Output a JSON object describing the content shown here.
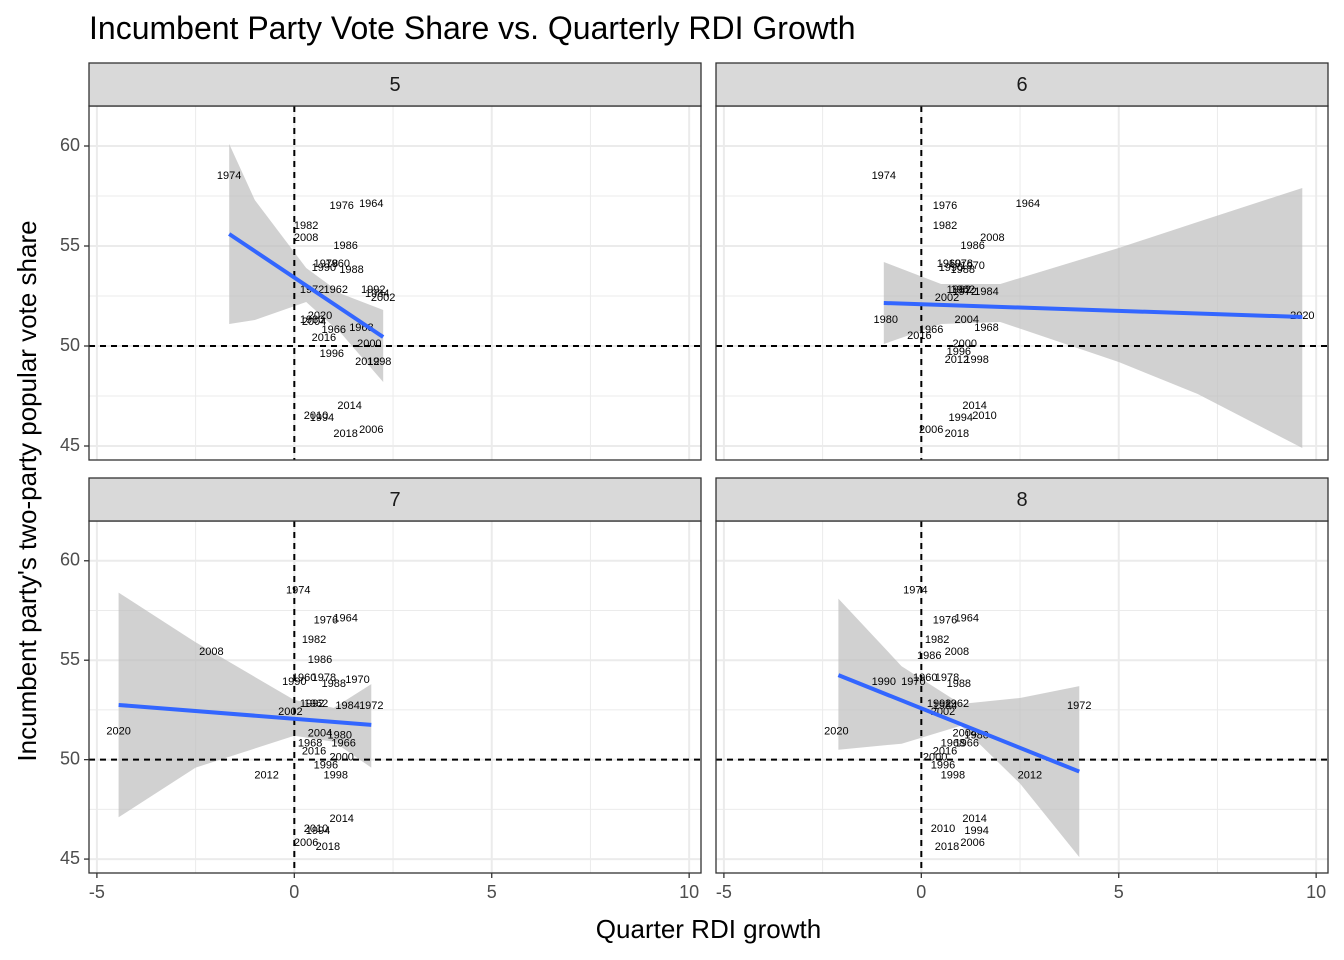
{
  "title": "Incumbent Party Vote Share vs. Quarterly RDI Growth",
  "colors": {
    "fit_line": "#3366FF",
    "ribbon": "#BEBEBE",
    "strip_fill": "#D9D9D9",
    "grid": "#EBEBEB",
    "panel_border": "#333333",
    "reference_line": "#000000"
  },
  "chart_data": {
    "type": "scatter",
    "facet_variable": "quarter",
    "xlabel": "Quarter RDI growth",
    "ylabel": "Incumbent party's two-party popular vote share",
    "xlim": [
      -5.2,
      10.3
    ],
    "ylim": [
      44.3,
      62.0
    ],
    "x_ticks": [
      -5,
      0,
      5,
      10
    ],
    "y_ticks": [
      45,
      50,
      55,
      60
    ],
    "reference_lines": {
      "x": 0,
      "y": 50
    },
    "grid": true,
    "smoother": "linear fit with confidence ribbon",
    "panels": [
      {
        "label": "5",
        "fit": {
          "x": [
            -1.65,
            2.25
          ],
          "y": [
            55.6,
            50.45
          ]
        },
        "ribbon": {
          "x": [
            -1.65,
            -1.0,
            0.3,
            1.2,
            2.25
          ],
          "upper": [
            60.1,
            57.3,
            53.9,
            52.6,
            51.8
          ],
          "lower": [
            51.1,
            51.3,
            52.2,
            50.6,
            48.2
          ]
        },
        "points": [
          {
            "label": "1974",
            "x": -1.65,
            "y": 58.5
          },
          {
            "label": "1976",
            "x": 1.2,
            "y": 57.0
          },
          {
            "label": "1964",
            "x": 1.95,
            "y": 57.1
          },
          {
            "label": "1982",
            "x": 0.3,
            "y": 56.0
          },
          {
            "label": "2008",
            "x": 0.3,
            "y": 55.4
          },
          {
            "label": "1986",
            "x": 1.3,
            "y": 55.0
          },
          {
            "label": "1978",
            "x": 0.8,
            "y": 54.1
          },
          {
            "label": "1960",
            "x": 1.1,
            "y": 54.1
          },
          {
            "label": "1990",
            "x": 0.75,
            "y": 53.9
          },
          {
            "label": "1988",
            "x": 1.45,
            "y": 53.8
          },
          {
            "label": "1972",
            "x": 0.45,
            "y": 52.8
          },
          {
            "label": "1962",
            "x": 1.05,
            "y": 52.8
          },
          {
            "label": "1992",
            "x": 2.0,
            "y": 52.8
          },
          {
            "label": "1984",
            "x": 2.1,
            "y": 52.6
          },
          {
            "label": "2002",
            "x": 2.25,
            "y": 52.4
          },
          {
            "label": "2020",
            "x": 0.65,
            "y": 51.5
          },
          {
            "label": "1980",
            "x": 0.45,
            "y": 51.3
          },
          {
            "label": "2004",
            "x": 0.5,
            "y": 51.2
          },
          {
            "label": "1966",
            "x": 1.0,
            "y": 50.8
          },
          {
            "label": "1968",
            "x": 1.7,
            "y": 50.9
          },
          {
            "label": "2016",
            "x": 0.75,
            "y": 50.4
          },
          {
            "label": "2000",
            "x": 1.9,
            "y": 50.1
          },
          {
            "label": "1996",
            "x": 0.95,
            "y": 49.6
          },
          {
            "label": "2012",
            "x": 1.85,
            "y": 49.2
          },
          {
            "label": "1998",
            "x": 2.15,
            "y": 49.2
          },
          {
            "label": "2014",
            "x": 1.4,
            "y": 47.0
          },
          {
            "label": "2010",
            "x": 0.55,
            "y": 46.5
          },
          {
            "label": "1994",
            "x": 0.7,
            "y": 46.4
          },
          {
            "label": "2006",
            "x": 1.95,
            "y": 45.8
          },
          {
            "label": "2018",
            "x": 1.3,
            "y": 45.6
          }
        ]
      },
      {
        "label": "6",
        "fit": {
          "x": [
            -0.95,
            9.65
          ],
          "y": [
            52.15,
            51.45
          ]
        },
        "ribbon": {
          "x": [
            -0.95,
            0.5,
            2.0,
            5.0,
            7.0,
            9.65
          ],
          "upper": [
            54.2,
            53.1,
            53.1,
            54.9,
            56.2,
            57.9
          ],
          "lower": [
            50.1,
            51.1,
            51.2,
            49.2,
            47.6,
            44.9
          ]
        },
        "points": [
          {
            "label": "1974",
            "x": -0.95,
            "y": 58.5
          },
          {
            "label": "1976",
            "x": 0.6,
            "y": 57.0
          },
          {
            "label": "1964",
            "x": 2.7,
            "y": 57.1
          },
          {
            "label": "1982",
            "x": 0.6,
            "y": 56.0
          },
          {
            "label": "2008",
            "x": 1.8,
            "y": 55.4
          },
          {
            "label": "1986",
            "x": 1.3,
            "y": 55.0
          },
          {
            "label": "1960",
            "x": 0.7,
            "y": 54.1
          },
          {
            "label": "1978",
            "x": 1.0,
            "y": 54.1
          },
          {
            "label": "1990",
            "x": 0.75,
            "y": 53.9
          },
          {
            "label": "1970",
            "x": 1.3,
            "y": 54.0
          },
          {
            "label": "1988",
            "x": 1.05,
            "y": 53.8
          },
          {
            "label": "1992",
            "x": 0.95,
            "y": 52.8
          },
          {
            "label": "1962",
            "x": 1.05,
            "y": 52.8
          },
          {
            "label": "1972",
            "x": 1.1,
            "y": 52.7
          },
          {
            "label": "1984",
            "x": 1.65,
            "y": 52.7
          },
          {
            "label": "2002",
            "x": 0.65,
            "y": 52.4
          },
          {
            "label": "1980",
            "x": -0.9,
            "y": 51.3
          },
          {
            "label": "2004",
            "x": 1.15,
            "y": 51.3
          },
          {
            "label": "1966",
            "x": 0.25,
            "y": 50.8
          },
          {
            "label": "1968",
            "x": 1.65,
            "y": 50.9
          },
          {
            "label": "2016",
            "x": -0.05,
            "y": 50.5
          },
          {
            "label": "2000",
            "x": 1.1,
            "y": 50.1
          },
          {
            "label": "1996",
            "x": 0.95,
            "y": 49.7
          },
          {
            "label": "2012",
            "x": 0.9,
            "y": 49.3
          },
          {
            "label": "1998",
            "x": 1.4,
            "y": 49.3
          },
          {
            "label": "2020",
            "x": 9.65,
            "y": 51.5
          },
          {
            "label": "2014",
            "x": 1.35,
            "y": 47.0
          },
          {
            "label": "1994",
            "x": 1.0,
            "y": 46.4
          },
          {
            "label": "2010",
            "x": 1.6,
            "y": 46.5
          },
          {
            "label": "2006",
            "x": 0.25,
            "y": 45.8
          },
          {
            "label": "2018",
            "x": 0.9,
            "y": 45.6
          }
        ]
      },
      {
        "label": "7",
        "fit": {
          "x": [
            -4.45,
            1.95
          ],
          "y": [
            52.75,
            51.75
          ]
        },
        "ribbon": {
          "x": [
            -4.45,
            -2.5,
            0.0,
            1.0,
            1.95
          ],
          "upper": [
            58.4,
            55.9,
            53.0,
            52.6,
            53.8
          ],
          "lower": [
            47.1,
            49.6,
            51.2,
            50.9,
            49.6
          ]
        },
        "points": [
          {
            "label": "1974",
            "x": 0.1,
            "y": 58.5
          },
          {
            "label": "1976",
            "x": 0.8,
            "y": 57.0
          },
          {
            "label": "1964",
            "x": 1.3,
            "y": 57.1
          },
          {
            "label": "1982",
            "x": 0.5,
            "y": 56.0
          },
          {
            "label": "2008",
            "x": -2.1,
            "y": 55.4
          },
          {
            "label": "1986",
            "x": 0.65,
            "y": 55.0
          },
          {
            "label": "1960",
            "x": 0.25,
            "y": 54.1
          },
          {
            "label": "1978",
            "x": 0.75,
            "y": 54.1
          },
          {
            "label": "1990",
            "x": 0.0,
            "y": 53.9
          },
          {
            "label": "1988",
            "x": 1.0,
            "y": 53.8
          },
          {
            "label": "1970",
            "x": 1.6,
            "y": 54.0
          },
          {
            "label": "1992",
            "x": 0.45,
            "y": 52.8
          },
          {
            "label": "1962",
            "x": 0.55,
            "y": 52.8
          },
          {
            "label": "1984",
            "x": 1.35,
            "y": 52.7
          },
          {
            "label": "1972",
            "x": 1.95,
            "y": 52.7
          },
          {
            "label": "2002",
            "x": -0.1,
            "y": 52.4
          },
          {
            "label": "2020",
            "x": -4.45,
            "y": 51.4
          },
          {
            "label": "2004",
            "x": 0.65,
            "y": 51.3
          },
          {
            "label": "1980",
            "x": 1.15,
            "y": 51.2
          },
          {
            "label": "1968",
            "x": 0.4,
            "y": 50.8
          },
          {
            "label": "1966",
            "x": 1.25,
            "y": 50.8
          },
          {
            "label": "2016",
            "x": 0.5,
            "y": 50.4
          },
          {
            "label": "2000",
            "x": 1.2,
            "y": 50.1
          },
          {
            "label": "1996",
            "x": 0.8,
            "y": 49.7
          },
          {
            "label": "2012",
            "x": -0.7,
            "y": 49.2
          },
          {
            "label": "1998",
            "x": 1.05,
            "y": 49.2
          },
          {
            "label": "2014",
            "x": 1.2,
            "y": 47.0
          },
          {
            "label": "2010",
            "x": 0.55,
            "y": 46.5
          },
          {
            "label": "1994",
            "x": 0.6,
            "y": 46.4
          },
          {
            "label": "2006",
            "x": 0.3,
            "y": 45.8
          },
          {
            "label": "2018",
            "x": 0.85,
            "y": 45.6
          }
        ]
      },
      {
        "label": "8",
        "fit": {
          "x": [
            -2.1,
            4.0
          ],
          "y": [
            54.25,
            49.4
          ]
        },
        "ribbon": {
          "x": [
            -2.1,
            -0.5,
            1.0,
            2.5,
            4.0
          ],
          "upper": [
            58.1,
            54.7,
            52.8,
            53.1,
            53.7
          ],
          "lower": [
            50.5,
            50.8,
            51.7,
            48.8,
            45.1
          ]
        },
        "points": [
          {
            "label": "1974",
            "x": -0.15,
            "y": 58.5
          },
          {
            "label": "1976",
            "x": 0.6,
            "y": 57.0
          },
          {
            "label": "1964",
            "x": 1.15,
            "y": 57.1
          },
          {
            "label": "1982",
            "x": 0.4,
            "y": 56.0
          },
          {
            "label": "1986",
            "x": 0.2,
            "y": 55.2
          },
          {
            "label": "2008",
            "x": 0.9,
            "y": 55.4
          },
          {
            "label": "1990",
            "x": -0.95,
            "y": 53.9
          },
          {
            "label": "1970",
            "x": -0.2,
            "y": 53.9
          },
          {
            "label": "1960",
            "x": 0.1,
            "y": 54.1
          },
          {
            "label": "1978",
            "x": 0.65,
            "y": 54.1
          },
          {
            "label": "1988",
            "x": 0.95,
            "y": 53.8
          },
          {
            "label": "1992",
            "x": 0.45,
            "y": 52.8
          },
          {
            "label": "1962",
            "x": 0.9,
            "y": 52.8
          },
          {
            "label": "1984",
            "x": 0.6,
            "y": 52.7
          },
          {
            "label": "2002",
            "x": 0.55,
            "y": 52.4
          },
          {
            "label": "1972",
            "x": 4.0,
            "y": 52.7
          },
          {
            "label": "2020",
            "x": -2.15,
            "y": 51.4
          },
          {
            "label": "2004",
            "x": 1.1,
            "y": 51.3
          },
          {
            "label": "1980",
            "x": 1.4,
            "y": 51.2
          },
          {
            "label": "1968",
            "x": 0.8,
            "y": 50.8
          },
          {
            "label": "1966",
            "x": 1.15,
            "y": 50.8
          },
          {
            "label": "2016",
            "x": 0.6,
            "y": 50.4
          },
          {
            "label": "2000",
            "x": 0.35,
            "y": 50.1
          },
          {
            "label": "1996",
            "x": 0.55,
            "y": 49.7
          },
          {
            "label": "2012",
            "x": 2.75,
            "y": 49.2
          },
          {
            "label": "1998",
            "x": 0.8,
            "y": 49.2
          },
          {
            "label": "2014",
            "x": 1.35,
            "y": 47.0
          },
          {
            "label": "2010",
            "x": 0.55,
            "y": 46.5
          },
          {
            "label": "1994",
            "x": 1.4,
            "y": 46.4
          },
          {
            "label": "2006",
            "x": 1.3,
            "y": 45.8
          },
          {
            "label": "2018",
            "x": 0.65,
            "y": 45.6
          }
        ]
      }
    ]
  }
}
